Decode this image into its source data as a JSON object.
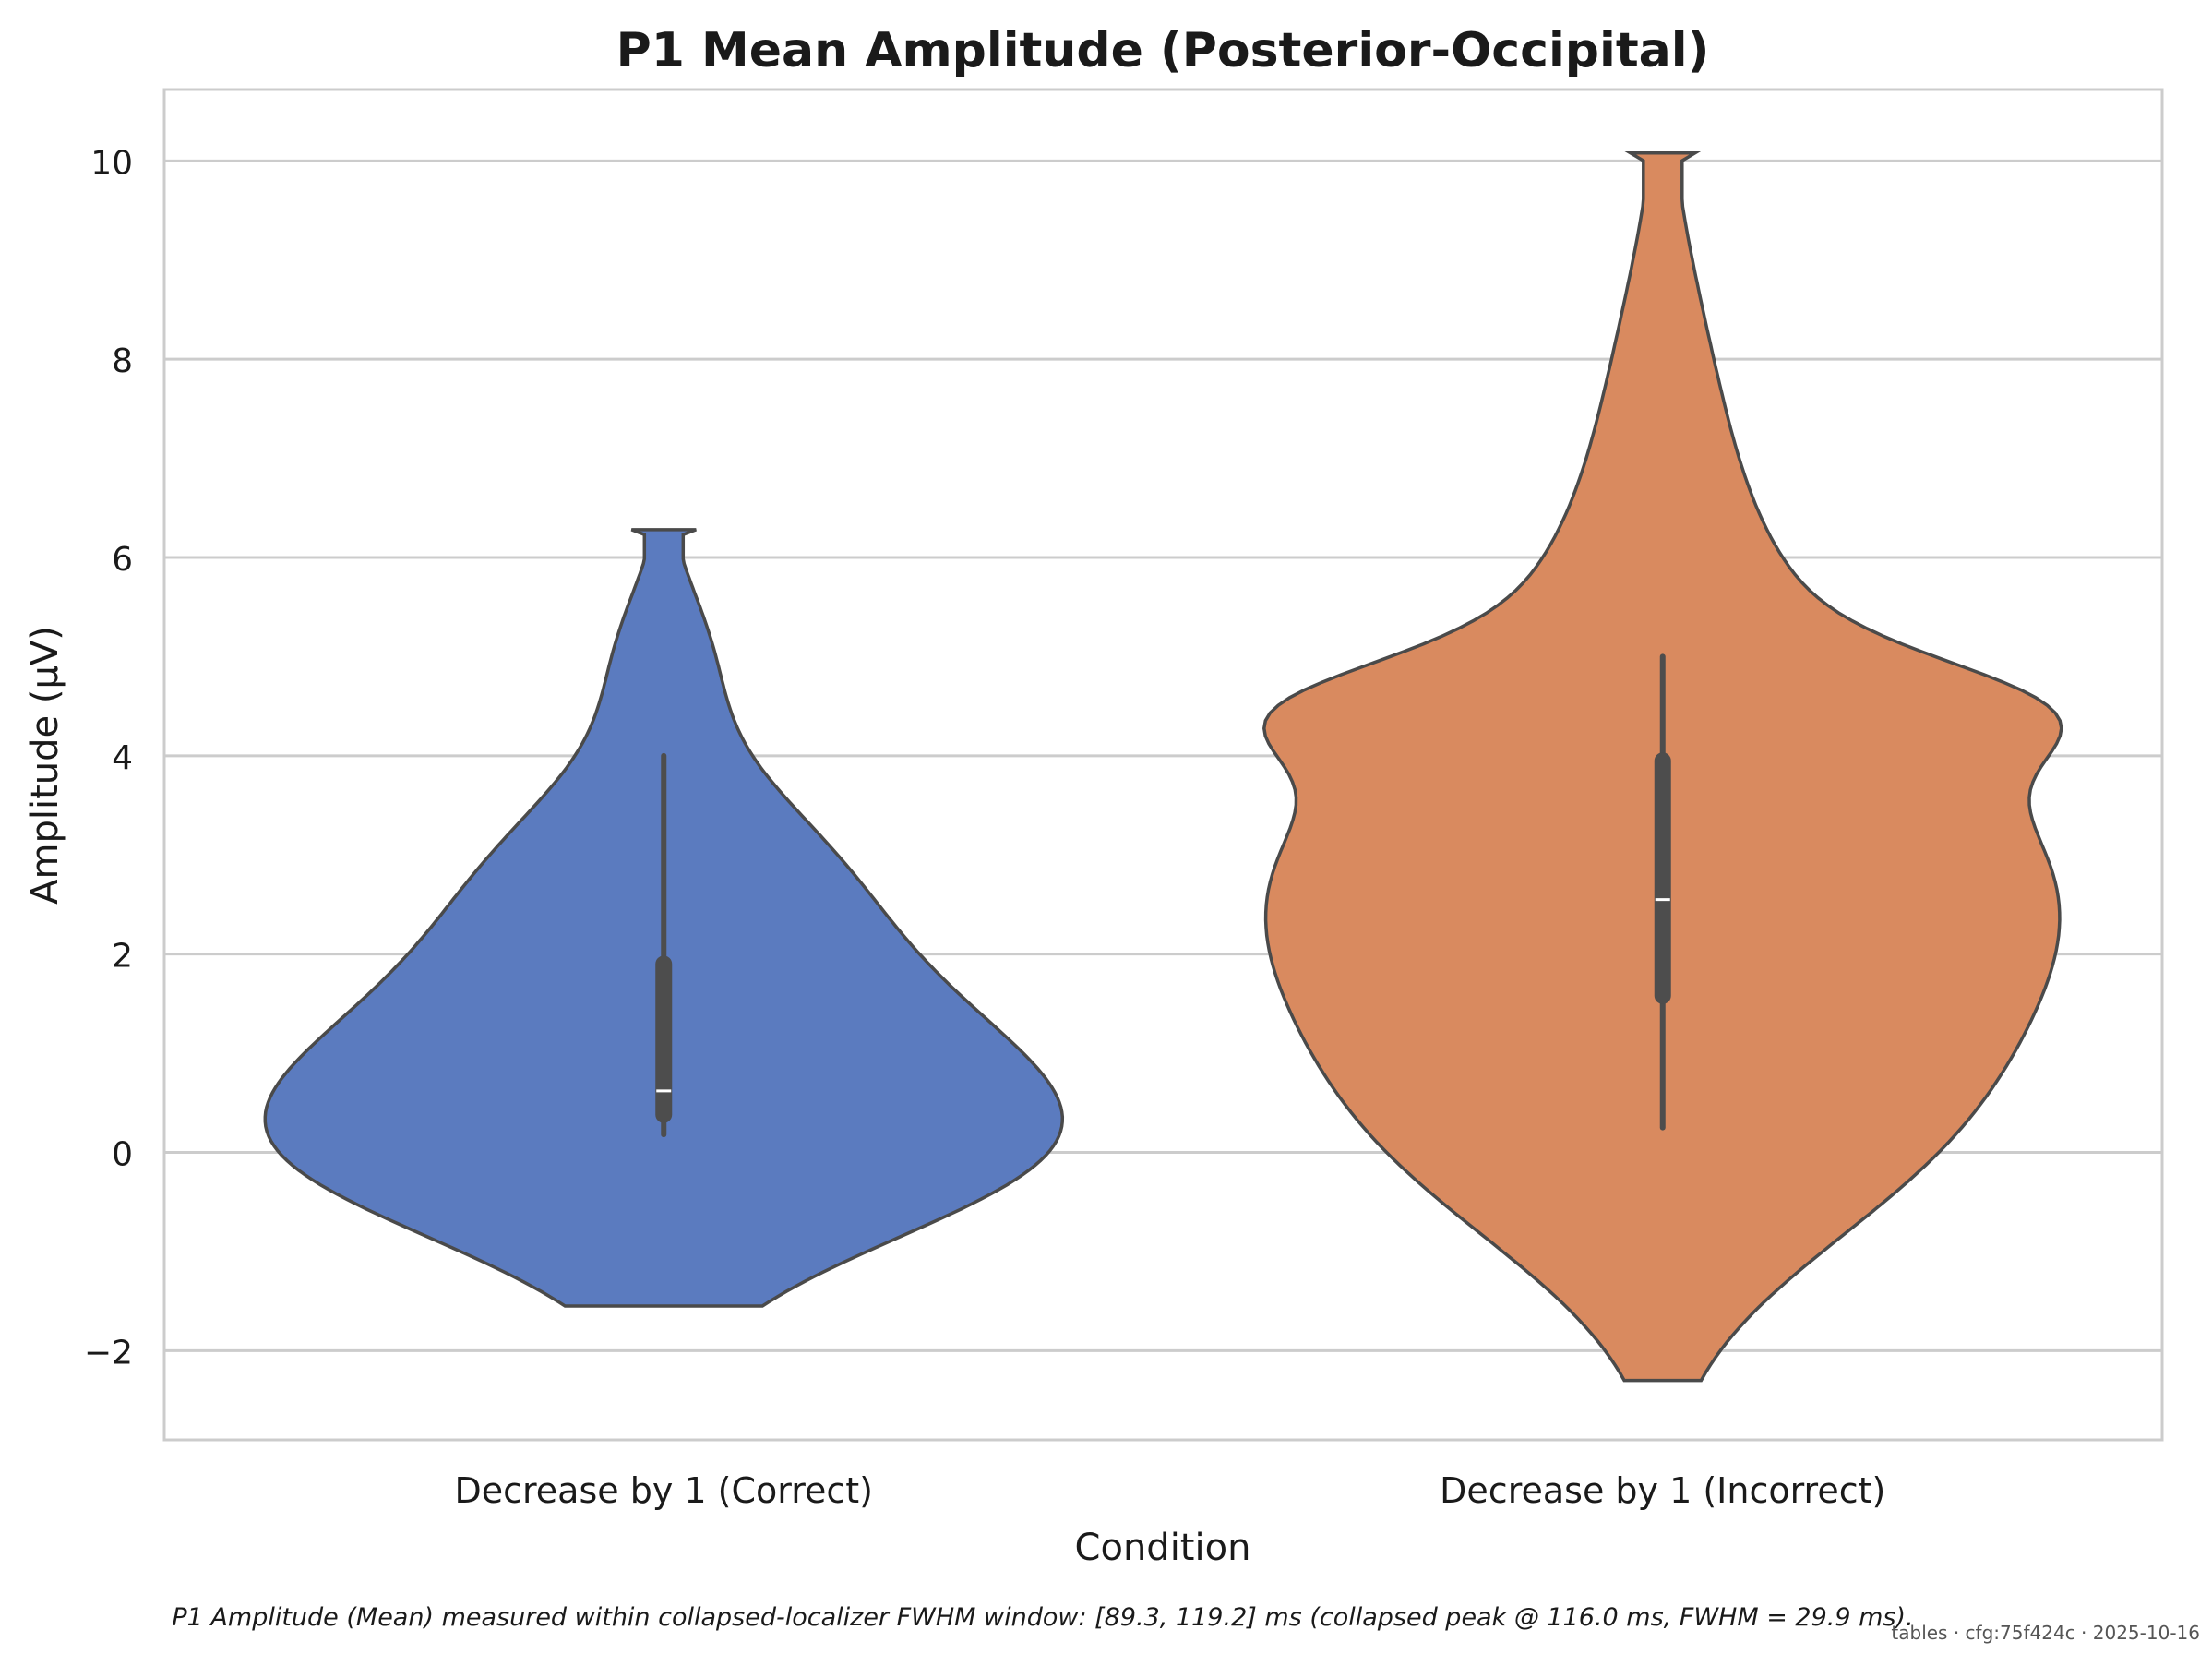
{
  "chart_data": {
    "type": "violin",
    "title": "P1 Mean Amplitude (Posterior-Occipital)",
    "xlabel": "Condition",
    "ylabel": "Amplitude (µV)",
    "ylim": [
      -2.9,
      10.72
    ],
    "yticks": [
      -2,
      0,
      2,
      4,
      6,
      8,
      10
    ],
    "ytick_labels": [
      "−2",
      "0",
      "2",
      "4",
      "6",
      "8",
      "10"
    ],
    "grid": "horizontal",
    "categories": [
      "Decrease by 1 (Correct)",
      "Decrease by 1 (Incorrect)"
    ],
    "series": [
      {
        "category": "Decrease by 1 (Correct)",
        "color": "#5b7bbf",
        "min": 0.18,
        "q1": 0.38,
        "median": 0.62,
        "q3": 1.9,
        "max": 4.0,
        "density_range": [
          -1.55,
          6.28
        ]
      },
      {
        "category": "Decrease by 1 (Incorrect)",
        "color": "#d98a5f",
        "min": 0.25,
        "q1": 1.58,
        "median": 2.55,
        "q3": 3.95,
        "max": 5.0,
        "density_range": [
          -2.3,
          10.08
        ]
      }
    ]
  },
  "footer": {
    "caption": "P1 Amplitude (Mean) measured within collapsed-localizer FWHM window: [89.3, 119.2] ms (collapsed peak @ 116.0 ms, FWHM = 29.9 ms).",
    "stamp": "tables · cfg:75f424c · 2025-10-16"
  }
}
